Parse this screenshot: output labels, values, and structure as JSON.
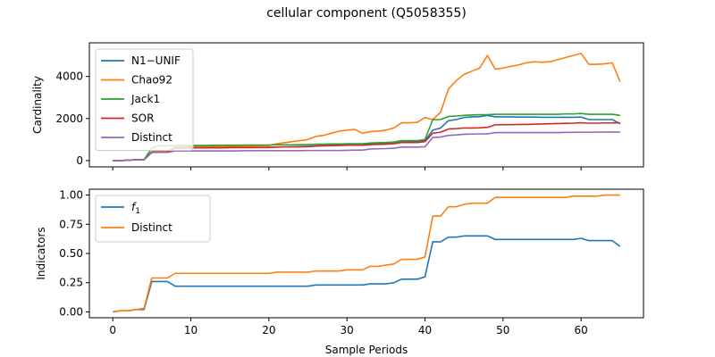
{
  "chart_data": {
    "type": "line",
    "title": "cellular component (Q5058355)",
    "xlabel": "Sample Periods",
    "xlim": [
      -3,
      68
    ],
    "xticks": [
      0,
      10,
      20,
      30,
      40,
      50,
      60
    ],
    "panels": [
      {
        "ylabel": "Cardinality",
        "ylim": [
          -300,
          5600
        ],
        "yticks": [
          0,
          2000,
          4000
        ],
        "legend": "upper-left",
        "x": [
          0,
          1,
          2,
          3,
          4,
          5,
          6,
          7,
          8,
          9,
          10,
          11,
          12,
          13,
          14,
          15,
          16,
          17,
          18,
          19,
          20,
          21,
          22,
          23,
          24,
          25,
          26,
          27,
          28,
          29,
          30,
          31,
          32,
          33,
          34,
          35,
          36,
          37,
          38,
          39,
          40,
          41,
          42,
          43,
          44,
          45,
          46,
          47,
          48,
          49,
          50,
          51,
          52,
          53,
          54,
          55,
          56,
          57,
          58,
          59,
          60,
          61,
          62,
          63,
          64,
          65
        ],
        "series": [
          {
            "name": "N1−UNIF",
            "color": "#1f77b4",
            "values": [
              0,
              0,
              20,
              40,
              40,
              420,
              430,
              430,
              600,
              600,
              600,
              610,
              610,
              610,
              610,
              620,
              620,
              620,
              620,
              630,
              630,
              640,
              650,
              660,
              670,
              680,
              700,
              710,
              720,
              730,
              740,
              740,
              740,
              790,
              800,
              820,
              840,
              900,
              900,
              900,
              940,
              1450,
              1550,
              1900,
              1950,
              2050,
              2080,
              2090,
              2150,
              2080,
              2080,
              2080,
              2070,
              2070,
              2070,
              2060,
              2060,
              2060,
              2060,
              2060,
              2070,
              1950,
              1950,
              1950,
              1950,
              1750
            ]
          },
          {
            "name": "Chao92",
            "color": "#ff7f0e",
            "values": [
              0,
              0,
              20,
              40,
              40,
              420,
              430,
              430,
              650,
              650,
              660,
              660,
              660,
              670,
              670,
              680,
              680,
              690,
              690,
              700,
              710,
              800,
              850,
              900,
              950,
              1000,
              1150,
              1200,
              1300,
              1400,
              1450,
              1480,
              1300,
              1380,
              1400,
              1450,
              1550,
              1800,
              1800,
              1820,
              2050,
              1950,
              2300,
              3400,
              3800,
              4100,
              4250,
              4400,
              5000,
              4350,
              4400,
              4480,
              4550,
              4650,
              4700,
              4680,
              4700,
              4800,
              4900,
              5000,
              5100,
              4580,
              4580,
              4600,
              4650,
              3750
            ]
          },
          {
            "name": "Jack1",
            "color": "#2ca02c",
            "values": [
              0,
              0,
              20,
              40,
              40,
              600,
              700,
              700,
              710,
              720,
              720,
              720,
              720,
              730,
              730,
              730,
              730,
              740,
              740,
              740,
              740,
              750,
              750,
              750,
              760,
              760,
              780,
              780,
              790,
              790,
              800,
              800,
              800,
              840,
              850,
              860,
              880,
              950,
              950,
              950,
              1000,
              1950,
              1950,
              2100,
              2120,
              2150,
              2170,
              2180,
              2180,
              2200,
              2200,
              2200,
              2200,
              2200,
              2200,
              2200,
              2200,
              2200,
              2220,
              2220,
              2240,
              2200,
              2200,
              2200,
              2200,
              2150
            ]
          },
          {
            "name": "SOR",
            "color": "#d62728",
            "values": [
              0,
              0,
              20,
              40,
              40,
              400,
              400,
              400,
              600,
              600,
              610,
              610,
              610,
              610,
              610,
              620,
              620,
              620,
              620,
              620,
              620,
              640,
              650,
              650,
              650,
              660,
              690,
              700,
              710,
              720,
              730,
              730,
              730,
              760,
              770,
              780,
              800,
              860,
              860,
              860,
              900,
              1300,
              1350,
              1500,
              1520,
              1550,
              1550,
              1560,
              1580,
              1700,
              1710,
              1710,
              1720,
              1720,
              1730,
              1740,
              1750,
              1760,
              1770,
              1780,
              1800,
              1780,
              1780,
              1790,
              1790,
              1800
            ]
          },
          {
            "name": "Distinct",
            "color": "#9467bd",
            "values": [
              0,
              0,
              20,
              40,
              40,
              380,
              390,
              390,
              460,
              460,
              460,
              460,
              460,
              460,
              460,
              460,
              460,
              470,
              470,
              470,
              470,
              470,
              470,
              470,
              470,
              480,
              480,
              480,
              480,
              480,
              490,
              500,
              500,
              550,
              560,
              570,
              590,
              640,
              640,
              640,
              660,
              1100,
              1120,
              1200,
              1220,
              1250,
              1260,
              1270,
              1270,
              1330,
              1330,
              1330,
              1330,
              1330,
              1330,
              1330,
              1330,
              1330,
              1340,
              1340,
              1350,
              1350,
              1350,
              1360,
              1360,
              1360
            ]
          }
        ]
      },
      {
        "ylabel": "Indicators",
        "ylim": [
          -0.05,
          1.05
        ],
        "yticks": [
          0.0,
          0.25,
          0.5,
          0.75,
          1.0
        ],
        "ytick_labels": [
          "0.00",
          "0.25",
          "0.50",
          "0.75",
          "1.00"
        ],
        "legend": "upper-left",
        "x": [
          0,
          1,
          2,
          3,
          4,
          5,
          6,
          7,
          8,
          9,
          10,
          11,
          12,
          13,
          14,
          15,
          16,
          17,
          18,
          19,
          20,
          21,
          22,
          23,
          24,
          25,
          26,
          27,
          28,
          29,
          30,
          31,
          32,
          33,
          34,
          35,
          36,
          37,
          38,
          39,
          40,
          41,
          42,
          43,
          44,
          45,
          46,
          47,
          48,
          49,
          50,
          51,
          52,
          53,
          54,
          55,
          56,
          57,
          58,
          59,
          60,
          61,
          62,
          63,
          64,
          65
        ],
        "series": [
          {
            "name": "f1",
            "color": "#1f77b4",
            "values": [
              0.0,
              0.01,
              0.01,
              0.02,
              0.02,
              0.26,
              0.26,
              0.26,
              0.22,
              0.22,
              0.22,
              0.22,
              0.22,
              0.22,
              0.22,
              0.22,
              0.22,
              0.22,
              0.22,
              0.22,
              0.22,
              0.22,
              0.22,
              0.22,
              0.22,
              0.22,
              0.23,
              0.23,
              0.23,
              0.23,
              0.23,
              0.23,
              0.23,
              0.24,
              0.24,
              0.24,
              0.25,
              0.28,
              0.28,
              0.28,
              0.3,
              0.6,
              0.6,
              0.64,
              0.64,
              0.65,
              0.65,
              0.65,
              0.65,
              0.62,
              0.62,
              0.62,
              0.62,
              0.62,
              0.62,
              0.62,
              0.62,
              0.62,
              0.62,
              0.62,
              0.63,
              0.61,
              0.61,
              0.61,
              0.61,
              0.56
            ]
          },
          {
            "name": "Distinct",
            "color": "#ff7f0e",
            "values": [
              0.0,
              0.01,
              0.01,
              0.02,
              0.03,
              0.29,
              0.29,
              0.29,
              0.33,
              0.33,
              0.33,
              0.33,
              0.33,
              0.33,
              0.33,
              0.33,
              0.33,
              0.33,
              0.33,
              0.33,
              0.33,
              0.34,
              0.34,
              0.34,
              0.34,
              0.34,
              0.35,
              0.35,
              0.35,
              0.35,
              0.36,
              0.36,
              0.36,
              0.39,
              0.39,
              0.4,
              0.41,
              0.45,
              0.45,
              0.45,
              0.47,
              0.82,
              0.82,
              0.9,
              0.9,
              0.92,
              0.93,
              0.93,
              0.93,
              0.98,
              0.98,
              0.98,
              0.98,
              0.98,
              0.98,
              0.98,
              0.98,
              0.98,
              0.98,
              0.99,
              0.99,
              0.99,
              0.99,
              1.0,
              1.0,
              1.0
            ]
          }
        ]
      }
    ]
  }
}
